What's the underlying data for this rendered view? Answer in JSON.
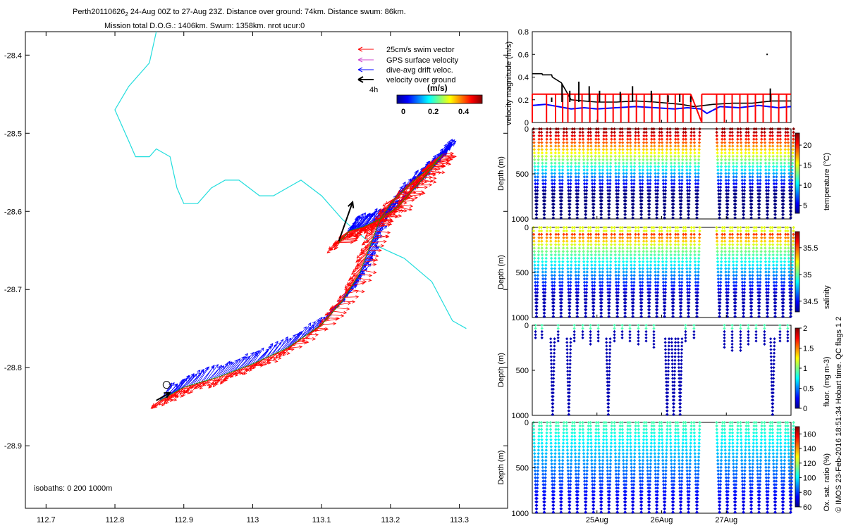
{
  "title": {
    "line1": "Perth20110626",
    "line1_sub": "2",
    "line1_rest": " 24-Aug 00Z to 27-Aug 23Z. Distance over ground: 74km. Distance swum: 86km.",
    "line2": "Mission total D.O.G.: 1406km. Swum: 1358km. nrot ucur:0"
  },
  "map": {
    "xticks": [
      "112.7",
      "112.8",
      "112.9",
      "113",
      "113.1",
      "113.2",
      "113.3"
    ],
    "yticks": [
      "-28.4",
      "-28.5",
      "-28.6",
      "-28.7",
      "-28.8",
      "-28.9"
    ],
    "isobaths_label": "isobaths: 0   200   1000m",
    "legend": {
      "swim": "25cm/s swim vector",
      "gps": "GPS surface velocity",
      "drift": "dive-avg drift veloc.",
      "vog": "velocity over ground",
      "vog_note": "4h"
    },
    "colorbar": {
      "label": "(m/s)",
      "ticks": [
        "0",
        "0.2",
        "0.4"
      ]
    }
  },
  "velocity_panel": {
    "ylabel": "velocity magnitude (m/s)",
    "yticks": [
      "0",
      "0.2",
      "0.4",
      "0.6",
      "0.8"
    ]
  },
  "depth_panels": [
    {
      "ylabel": "Depth (m)",
      "cblabel": "temperature (°C)",
      "cbticks": [
        "5",
        "10",
        "15",
        "20"
      ],
      "yticks": [
        "0",
        "500",
        "1000"
      ]
    },
    {
      "ylabel": "Depth (m)",
      "cblabel": "salinity",
      "cbticks": [
        "34.5",
        "35",
        "35.5"
      ],
      "yticks": [
        "0",
        "500",
        "1000"
      ]
    },
    {
      "ylabel": "Depth (m)",
      "cblabel": "fluor. (mg m-3)",
      "cbticks": [
        "0",
        "0.5",
        "1",
        "1.5",
        "2"
      ],
      "yticks": [
        "0",
        "500",
        "1000"
      ]
    },
    {
      "ylabel": "Depth (m)",
      "cblabel": "Ox. sat. ratio (%)",
      "cbticks": [
        "60",
        "80",
        "100",
        "120",
        "140",
        "160"
      ],
      "yticks": [
        "0",
        "500",
        "1000"
      ]
    }
  ],
  "time_ticks": [
    "25Aug",
    "26Aug",
    "27Aug"
  ],
  "footer": "© IMOS 23-Feb-2016 18:51:34 Hobart time. QC flags 1  2",
  "colors": {
    "swim": "#ff0000",
    "drift": "#0000ff",
    "vog": "#000000",
    "gps": "#cc44cc",
    "isobath": "#22dddd"
  },
  "chart_data": [
    {
      "type": "scatter",
      "subtype": "map-track",
      "xlabel": "",
      "ylabel": "",
      "xlim": [
        112.67,
        113.37
      ],
      "ylim": [
        -28.98,
        -28.37
      ],
      "isobath": [
        [
          112.86,
          -28.37
        ],
        [
          112.85,
          -28.41
        ],
        [
          112.82,
          -28.44
        ],
        [
          112.8,
          -28.47
        ],
        [
          112.81,
          -28.49
        ],
        [
          112.82,
          -28.51
        ],
        [
          112.83,
          -28.53
        ],
        [
          112.85,
          -28.53
        ],
        [
          112.86,
          -28.52
        ],
        [
          112.88,
          -28.53
        ],
        [
          112.89,
          -28.57
        ],
        [
          112.9,
          -28.59
        ],
        [
          112.92,
          -28.59
        ],
        [
          112.94,
          -28.57
        ],
        [
          112.96,
          -28.56
        ],
        [
          112.98,
          -28.56
        ],
        [
          113.01,
          -28.58
        ],
        [
          113.03,
          -28.58
        ],
        [
          113.05,
          -28.57
        ],
        [
          113.07,
          -28.56
        ],
        [
          113.1,
          -28.58
        ],
        [
          113.13,
          -28.61
        ],
        [
          113.17,
          -28.64
        ],
        [
          113.22,
          -28.66
        ],
        [
          113.26,
          -28.69
        ],
        [
          113.29,
          -28.74
        ],
        [
          113.31,
          -28.75
        ]
      ],
      "track": [
        [
          112.865,
          -28.842
        ],
        [
          112.9,
          -28.825
        ],
        [
          112.95,
          -28.812
        ],
        [
          113.0,
          -28.795
        ],
        [
          113.05,
          -28.775
        ],
        [
          113.1,
          -28.745
        ],
        [
          113.13,
          -28.715
        ],
        [
          113.155,
          -28.68
        ],
        [
          113.17,
          -28.645
        ],
        [
          113.185,
          -28.61
        ],
        [
          113.205,
          -28.585
        ],
        [
          113.235,
          -28.56
        ],
        [
          113.262,
          -28.54
        ],
        [
          113.275,
          -28.527
        ],
        [
          113.26,
          -28.545
        ],
        [
          113.235,
          -28.57
        ],
        [
          113.21,
          -28.595
        ],
        [
          113.185,
          -28.61
        ],
        [
          113.16,
          -28.62
        ],
        [
          113.14,
          -28.625
        ],
        [
          113.125,
          -28.64
        ]
      ],
      "vog_arrows": [
        [
          [
            112.86,
            -28.842
          ],
          [
            112.88,
            -28.832
          ]
        ],
        [
          [
            113.125,
            -28.638
          ],
          [
            113.145,
            -28.588
          ]
        ]
      ]
    },
    {
      "type": "line",
      "xlabel": "",
      "ylabel": "velocity magnitude (m/s)",
      "xlim": [
        24.0,
        28.0
      ],
      "ylim": [
        0,
        0.8
      ],
      "series": [
        {
          "name": "",
          "color": "#000000",
          "x": [
            24.0,
            24.15,
            24.16,
            24.3,
            24.31,
            24.45,
            24.5,
            24.6,
            24.8,
            25.0,
            25.3,
            25.6,
            25.9,
            26.1,
            26.3,
            26.5,
            26.8,
            27.1,
            27.4,
            27.7,
            28.0
          ],
          "y": [
            0.43,
            0.43,
            0.42,
            0.42,
            0.4,
            0.35,
            0.3,
            0.2,
            0.19,
            0.18,
            0.18,
            0.19,
            0.18,
            0.17,
            0.16,
            0.14,
            0.16,
            0.17,
            0.17,
            0.19,
            0.19
          ]
        },
        {
          "name": "",
          "color": "#0000ff",
          "x": [
            24.0,
            24.2,
            24.4,
            24.6,
            24.8,
            25.0,
            25.3,
            25.6,
            25.9,
            26.2,
            26.4,
            26.6,
            26.7,
            26.9,
            27.2,
            27.5,
            27.8,
            28.0
          ],
          "y": [
            0.15,
            0.16,
            0.14,
            0.12,
            0.13,
            0.12,
            0.13,
            0.14,
            0.13,
            0.12,
            0.13,
            0.12,
            0.08,
            0.14,
            0.13,
            0.15,
            0.13,
            0.14
          ]
        },
        {
          "name": "",
          "color": "#ff0000",
          "kind": "dive-bar",
          "top": 0.25,
          "x": [
            24.0,
            24.22,
            24.36,
            24.47,
            24.55,
            24.66,
            24.77,
            24.89,
            25.01,
            25.13,
            25.25,
            25.37,
            25.49,
            25.61,
            25.73,
            25.85,
            25.97,
            26.09,
            26.21,
            26.33,
            26.45,
            26.62,
            26.85,
            26.97,
            27.09,
            27.21,
            27.33,
            27.45,
            27.57,
            27.69,
            27.81,
            27.93
          ]
        }
      ],
      "spikes": [
        [
          24.3,
          0.22
        ],
        [
          24.46,
          0.34
        ],
        [
          24.58,
          0.28
        ],
        [
          24.72,
          0.36
        ],
        [
          24.88,
          0.32
        ],
        [
          25.04,
          0.28
        ],
        [
          25.36,
          0.27
        ],
        [
          25.55,
          0.32
        ],
        [
          25.84,
          0.28
        ],
        [
          26.1,
          0.24
        ],
        [
          26.28,
          0.25
        ],
        [
          26.45,
          0.23
        ],
        [
          27.68,
          0.3
        ]
      ]
    },
    {
      "type": "scatter",
      "subtype": "yo-profile",
      "variable": "temperature",
      "xlabel": "",
      "ylabel": "Depth (m)",
      "xlim": [
        24.0,
        28.0
      ],
      "ylim": [
        1000,
        0
      ],
      "clim": [
        3,
        23
      ],
      "dives": [
        24.02,
        24.14,
        24.28,
        24.4,
        24.53,
        24.65,
        24.78,
        24.9,
        25.02,
        25.14,
        25.27,
        25.39,
        25.51,
        25.64,
        25.76,
        25.88,
        26.0,
        26.13,
        26.25,
        26.37,
        26.5,
        26.85,
        26.97,
        27.09,
        27.22,
        27.34,
        27.46,
        27.59,
        27.71,
        27.83,
        27.95
      ],
      "max_depth": 1000
    },
    {
      "type": "scatter",
      "subtype": "yo-profile",
      "variable": "salinity",
      "xlabel": "",
      "ylabel": "Depth (m)",
      "xlim": [
        24.0,
        28.0
      ],
      "ylim": [
        1000,
        0
      ],
      "clim": [
        34.3,
        35.8
      ],
      "dives": [
        24.02,
        24.14,
        24.28,
        24.4,
        24.53,
        24.65,
        24.78,
        24.9,
        25.02,
        25.14,
        25.27,
        25.39,
        25.51,
        25.64,
        25.76,
        25.88,
        26.0,
        26.13,
        26.25,
        26.37,
        26.5,
        26.85,
        26.97,
        27.09,
        27.22,
        27.34,
        27.46,
        27.59,
        27.71,
        27.83,
        27.95
      ],
      "max_depth": 1000
    },
    {
      "type": "scatter",
      "subtype": "yo-profile",
      "variable": "fluorescence",
      "xlabel": "",
      "ylabel": "Depth (m)",
      "xlim": [
        24.0,
        28.0
      ],
      "ylim": [
        1000,
        0
      ],
      "clim": [
        0,
        2
      ],
      "deep_dives": [
        24.28,
        24.53,
        25.14,
        26.05,
        26.15,
        26.25,
        27.68
      ],
      "shallow": [
        [
          24.05,
          150
        ],
        [
          24.15,
          170
        ],
        [
          24.4,
          200
        ],
        [
          24.65,
          180
        ],
        [
          24.78,
          170
        ],
        [
          24.9,
          220
        ],
        [
          25.02,
          190
        ],
        [
          25.27,
          180
        ],
        [
          25.39,
          160
        ],
        [
          25.51,
          190
        ],
        [
          25.64,
          230
        ],
        [
          25.76,
          200
        ],
        [
          25.88,
          260
        ],
        [
          26.37,
          200
        ],
        [
          26.5,
          170
        ],
        [
          26.97,
          250
        ],
        [
          27.09,
          280
        ],
        [
          27.22,
          300
        ],
        [
          27.34,
          240
        ],
        [
          27.46,
          190
        ],
        [
          27.59,
          230
        ],
        [
          27.83,
          180
        ],
        [
          27.95,
          200
        ]
      ]
    },
    {
      "type": "scatter",
      "subtype": "yo-profile",
      "variable": "oxygen saturation",
      "xlabel": "",
      "ylabel": "Depth (m)",
      "xlim": [
        24.0,
        28.0
      ],
      "ylim": [
        1000,
        0
      ],
      "clim": [
        60,
        170
      ],
      "dives": [
        24.02,
        24.14,
        24.28,
        24.4,
        24.53,
        24.65,
        24.78,
        24.9,
        25.02,
        25.14,
        25.27,
        25.39,
        25.51,
        25.64,
        25.76,
        25.88,
        26.0,
        26.13,
        26.25,
        26.37,
        26.5,
        26.85,
        26.97,
        27.09,
        27.22,
        27.34,
        27.46,
        27.59,
        27.71,
        27.83,
        27.95
      ],
      "max_depth": 1000
    }
  ]
}
